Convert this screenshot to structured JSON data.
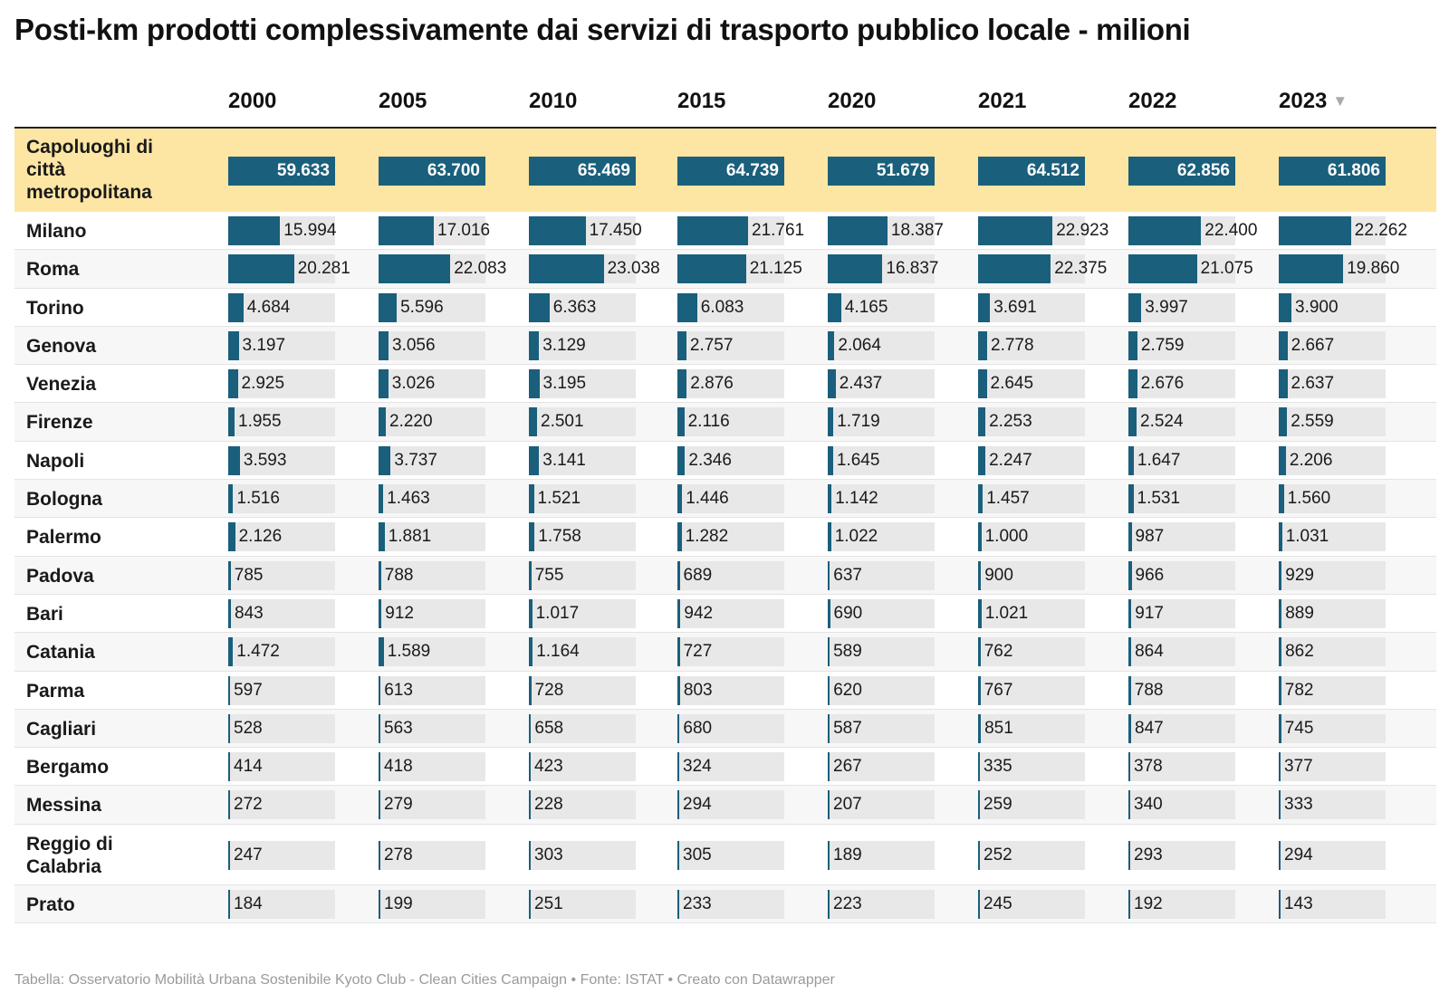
{
  "title": "Posti-km prodotti complessivamente dai servizi di trasporto pubblico locale - milioni",
  "footer": "Tabella: Osservatorio Mobilità Urbana Sostenibile Kyoto Club - Clean Cities Campaign • Fonte: ISTAT • Creato con Datawrapper",
  "sort_icon": "triangle-down-icon",
  "colors": {
    "bar": "#1a5f7c",
    "track": "#e8e8e8",
    "highlight_row": "#fde6a3",
    "alt_row": "#f7f7f7"
  },
  "chart_data": {
    "type": "table",
    "columns": [
      "2000",
      "2005",
      "2010",
      "2015",
      "2020",
      "2021",
      "2022",
      "2023"
    ],
    "sorted_by": "2023",
    "rows": [
      {
        "label": "Capoluoghi di città metropolitana",
        "display": [
          "59.633",
          "63.700",
          "65.469",
          "64.739",
          "51.679",
          "64.512",
          "62.856",
          "61.806"
        ],
        "values": [
          59633,
          63700,
          65469,
          64739,
          51679,
          64512,
          62856,
          61806
        ],
        "highlight": true
      },
      {
        "label": "Milano",
        "display": [
          "15.994",
          "17.016",
          "17.450",
          "21.761",
          "18.387",
          "22.923",
          "22.400",
          "22.262"
        ],
        "values": [
          15994,
          17016,
          17450,
          21761,
          18387,
          22923,
          22400,
          22262
        ]
      },
      {
        "label": "Roma",
        "display": [
          "20.281",
          "22.083",
          "23.038",
          "21.125",
          "16.837",
          "22.375",
          "21.075",
          "19.860"
        ],
        "values": [
          20281,
          22083,
          23038,
          21125,
          16837,
          22375,
          21075,
          19860
        ]
      },
      {
        "label": "Torino",
        "display": [
          "4.684",
          "5.596",
          "6.363",
          "6.083",
          "4.165",
          "3.691",
          "3.997",
          "3.900"
        ],
        "values": [
          4684,
          5596,
          6363,
          6083,
          4165,
          3691,
          3997,
          3900
        ]
      },
      {
        "label": "Genova",
        "display": [
          "3.197",
          "3.056",
          "3.129",
          "2.757",
          "2.064",
          "2.778",
          "2.759",
          "2.667"
        ],
        "values": [
          3197,
          3056,
          3129,
          2757,
          2064,
          2778,
          2759,
          2667
        ]
      },
      {
        "label": "Venezia",
        "display": [
          "2.925",
          "3.026",
          "3.195",
          "2.876",
          "2.437",
          "2.645",
          "2.676",
          "2.637"
        ],
        "values": [
          2925,
          3026,
          3195,
          2876,
          2437,
          2645,
          2676,
          2637
        ]
      },
      {
        "label": "Firenze",
        "display": [
          "1.955",
          "2.220",
          "2.501",
          "2.116",
          "1.719",
          "2.253",
          "2.524",
          "2.559"
        ],
        "values": [
          1955,
          2220,
          2501,
          2116,
          1719,
          2253,
          2524,
          2559
        ]
      },
      {
        "label": "Napoli",
        "display": [
          "3.593",
          "3.737",
          "3.141",
          "2.346",
          "1.645",
          "2.247",
          "1.647",
          "2.206"
        ],
        "values": [
          3593,
          3737,
          3141,
          2346,
          1645,
          2247,
          1647,
          2206
        ]
      },
      {
        "label": "Bologna",
        "display": [
          "1.516",
          "1.463",
          "1.521",
          "1.446",
          "1.142",
          "1.457",
          "1.531",
          "1.560"
        ],
        "values": [
          1516,
          1463,
          1521,
          1446,
          1142,
          1457,
          1531,
          1560
        ]
      },
      {
        "label": "Palermo",
        "display": [
          "2.126",
          "1.881",
          "1.758",
          "1.282",
          "1.022",
          "1.000",
          "987",
          "1.031"
        ],
        "values": [
          2126,
          1881,
          1758,
          1282,
          1022,
          1000,
          987,
          1031
        ]
      },
      {
        "label": "Padova",
        "display": [
          "785",
          "788",
          "755",
          "689",
          "637",
          "900",
          "966",
          "929"
        ],
        "values": [
          785,
          788,
          755,
          689,
          637,
          900,
          966,
          929
        ]
      },
      {
        "label": "Bari",
        "display": [
          "843",
          "912",
          "1.017",
          "942",
          "690",
          "1.021",
          "917",
          "889"
        ],
        "values": [
          843,
          912,
          1017,
          942,
          690,
          1021,
          917,
          889
        ]
      },
      {
        "label": "Catania",
        "display": [
          "1.472",
          "1.589",
          "1.164",
          "727",
          "589",
          "762",
          "864",
          "862"
        ],
        "values": [
          1472,
          1589,
          1164,
          727,
          589,
          762,
          864,
          862
        ]
      },
      {
        "label": "Parma",
        "display": [
          "597",
          "613",
          "728",
          "803",
          "620",
          "767",
          "788",
          "782"
        ],
        "values": [
          597,
          613,
          728,
          803,
          620,
          767,
          788,
          782
        ]
      },
      {
        "label": "Cagliari",
        "display": [
          "528",
          "563",
          "658",
          "680",
          "587",
          "851",
          "847",
          "745"
        ],
        "values": [
          528,
          563,
          658,
          680,
          587,
          851,
          847,
          745
        ]
      },
      {
        "label": "Bergamo",
        "display": [
          "414",
          "418",
          "423",
          "324",
          "267",
          "335",
          "378",
          "377"
        ],
        "values": [
          414,
          418,
          423,
          324,
          267,
          335,
          378,
          377
        ]
      },
      {
        "label": "Messina",
        "display": [
          "272",
          "279",
          "228",
          "294",
          "207",
          "259",
          "340",
          "333"
        ],
        "values": [
          272,
          279,
          228,
          294,
          207,
          259,
          340,
          333
        ]
      },
      {
        "label": "Reggio di Calabria",
        "display": [
          "247",
          "278",
          "303",
          "305",
          "189",
          "252",
          "293",
          "294"
        ],
        "values": [
          247,
          278,
          303,
          305,
          189,
          252,
          293,
          294
        ]
      },
      {
        "label": "Prato",
        "display": [
          "184",
          "199",
          "251",
          "233",
          "223",
          "245",
          "192",
          "143"
        ],
        "values": [
          184,
          199,
          251,
          233,
          223,
          245,
          192,
          143
        ]
      }
    ]
  }
}
